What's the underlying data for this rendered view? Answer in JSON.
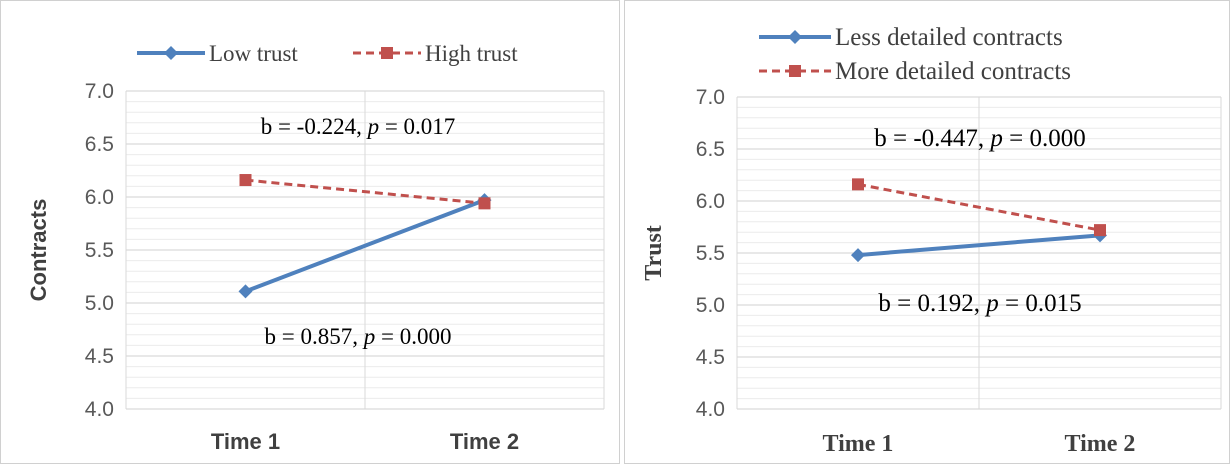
{
  "chart_data": [
    {
      "type": "line",
      "categories": [
        "Time 1",
        "Time 2"
      ],
      "ylabel": "Contracts",
      "ylim": [
        4.0,
        7.0
      ],
      "yticks": [
        "4.0",
        "4.5",
        "5.0",
        "5.5",
        "6.0",
        "6.5",
        "7.0"
      ],
      "grid": true,
      "legend_position": "top",
      "series": [
        {
          "name": "Low trust",
          "values": [
            5.11,
            5.97
          ],
          "color": "#4f81bd",
          "style": "solid",
          "marker": "diamond"
        },
        {
          "name": "High trust",
          "values": [
            6.16,
            5.94
          ],
          "color": "#c0504d",
          "style": "dashed",
          "marker": "square"
        }
      ],
      "annotations": [
        {
          "b": "b = -0.224, ",
          "p": "p",
          "rest": " = 0.017"
        },
        {
          "b": "b = 0.857, ",
          "p": "p",
          "rest": " = 0.000"
        }
      ]
    },
    {
      "type": "line",
      "categories": [
        "Time 1",
        "Time 2"
      ],
      "ylabel": "Trust",
      "ylim": [
        4.0,
        7.0
      ],
      "yticks": [
        "4.0",
        "4.5",
        "5.0",
        "5.5",
        "6.0",
        "6.5",
        "7.0"
      ],
      "grid": true,
      "legend_position": "top",
      "series": [
        {
          "name": "Less detailed contracts",
          "values": [
            5.48,
            5.67
          ],
          "color": "#4f81bd",
          "style": "solid",
          "marker": "diamond"
        },
        {
          "name": "More detailed contracts",
          "values": [
            6.16,
            5.72
          ],
          "color": "#c0504d",
          "style": "dashed",
          "marker": "square"
        }
      ],
      "annotations": [
        {
          "b": "b = -0.447, ",
          "p": "p",
          "rest": " = 0.000"
        },
        {
          "b": "b = 0.192, ",
          "p": "p",
          "rest": " = 0.015"
        }
      ]
    }
  ]
}
